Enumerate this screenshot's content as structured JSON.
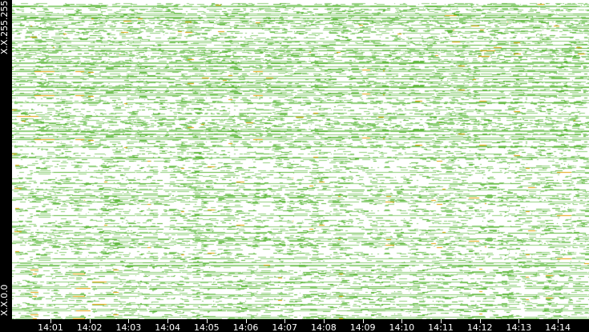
{
  "chart_data": {
    "type": "heatmap",
    "y_tick_labels": [
      "X.X.255.255",
      "X.X.0.0"
    ],
    "x_tick_labels": [
      "14:01",
      "14:02",
      "14:03",
      "14:04",
      "14:05",
      "14:06",
      "14:07",
      "14:08",
      "14:09",
      "14:10",
      "14:11",
      "14:12",
      "14:13",
      "14:14"
    ],
    "colors": {
      "background": "#ffffff",
      "low": "#8fcf7a",
      "mid": "#5fb83c",
      "high": "#e0a000",
      "axis_bg": "#000000",
      "axis_text": "#ffffff"
    }
  }
}
